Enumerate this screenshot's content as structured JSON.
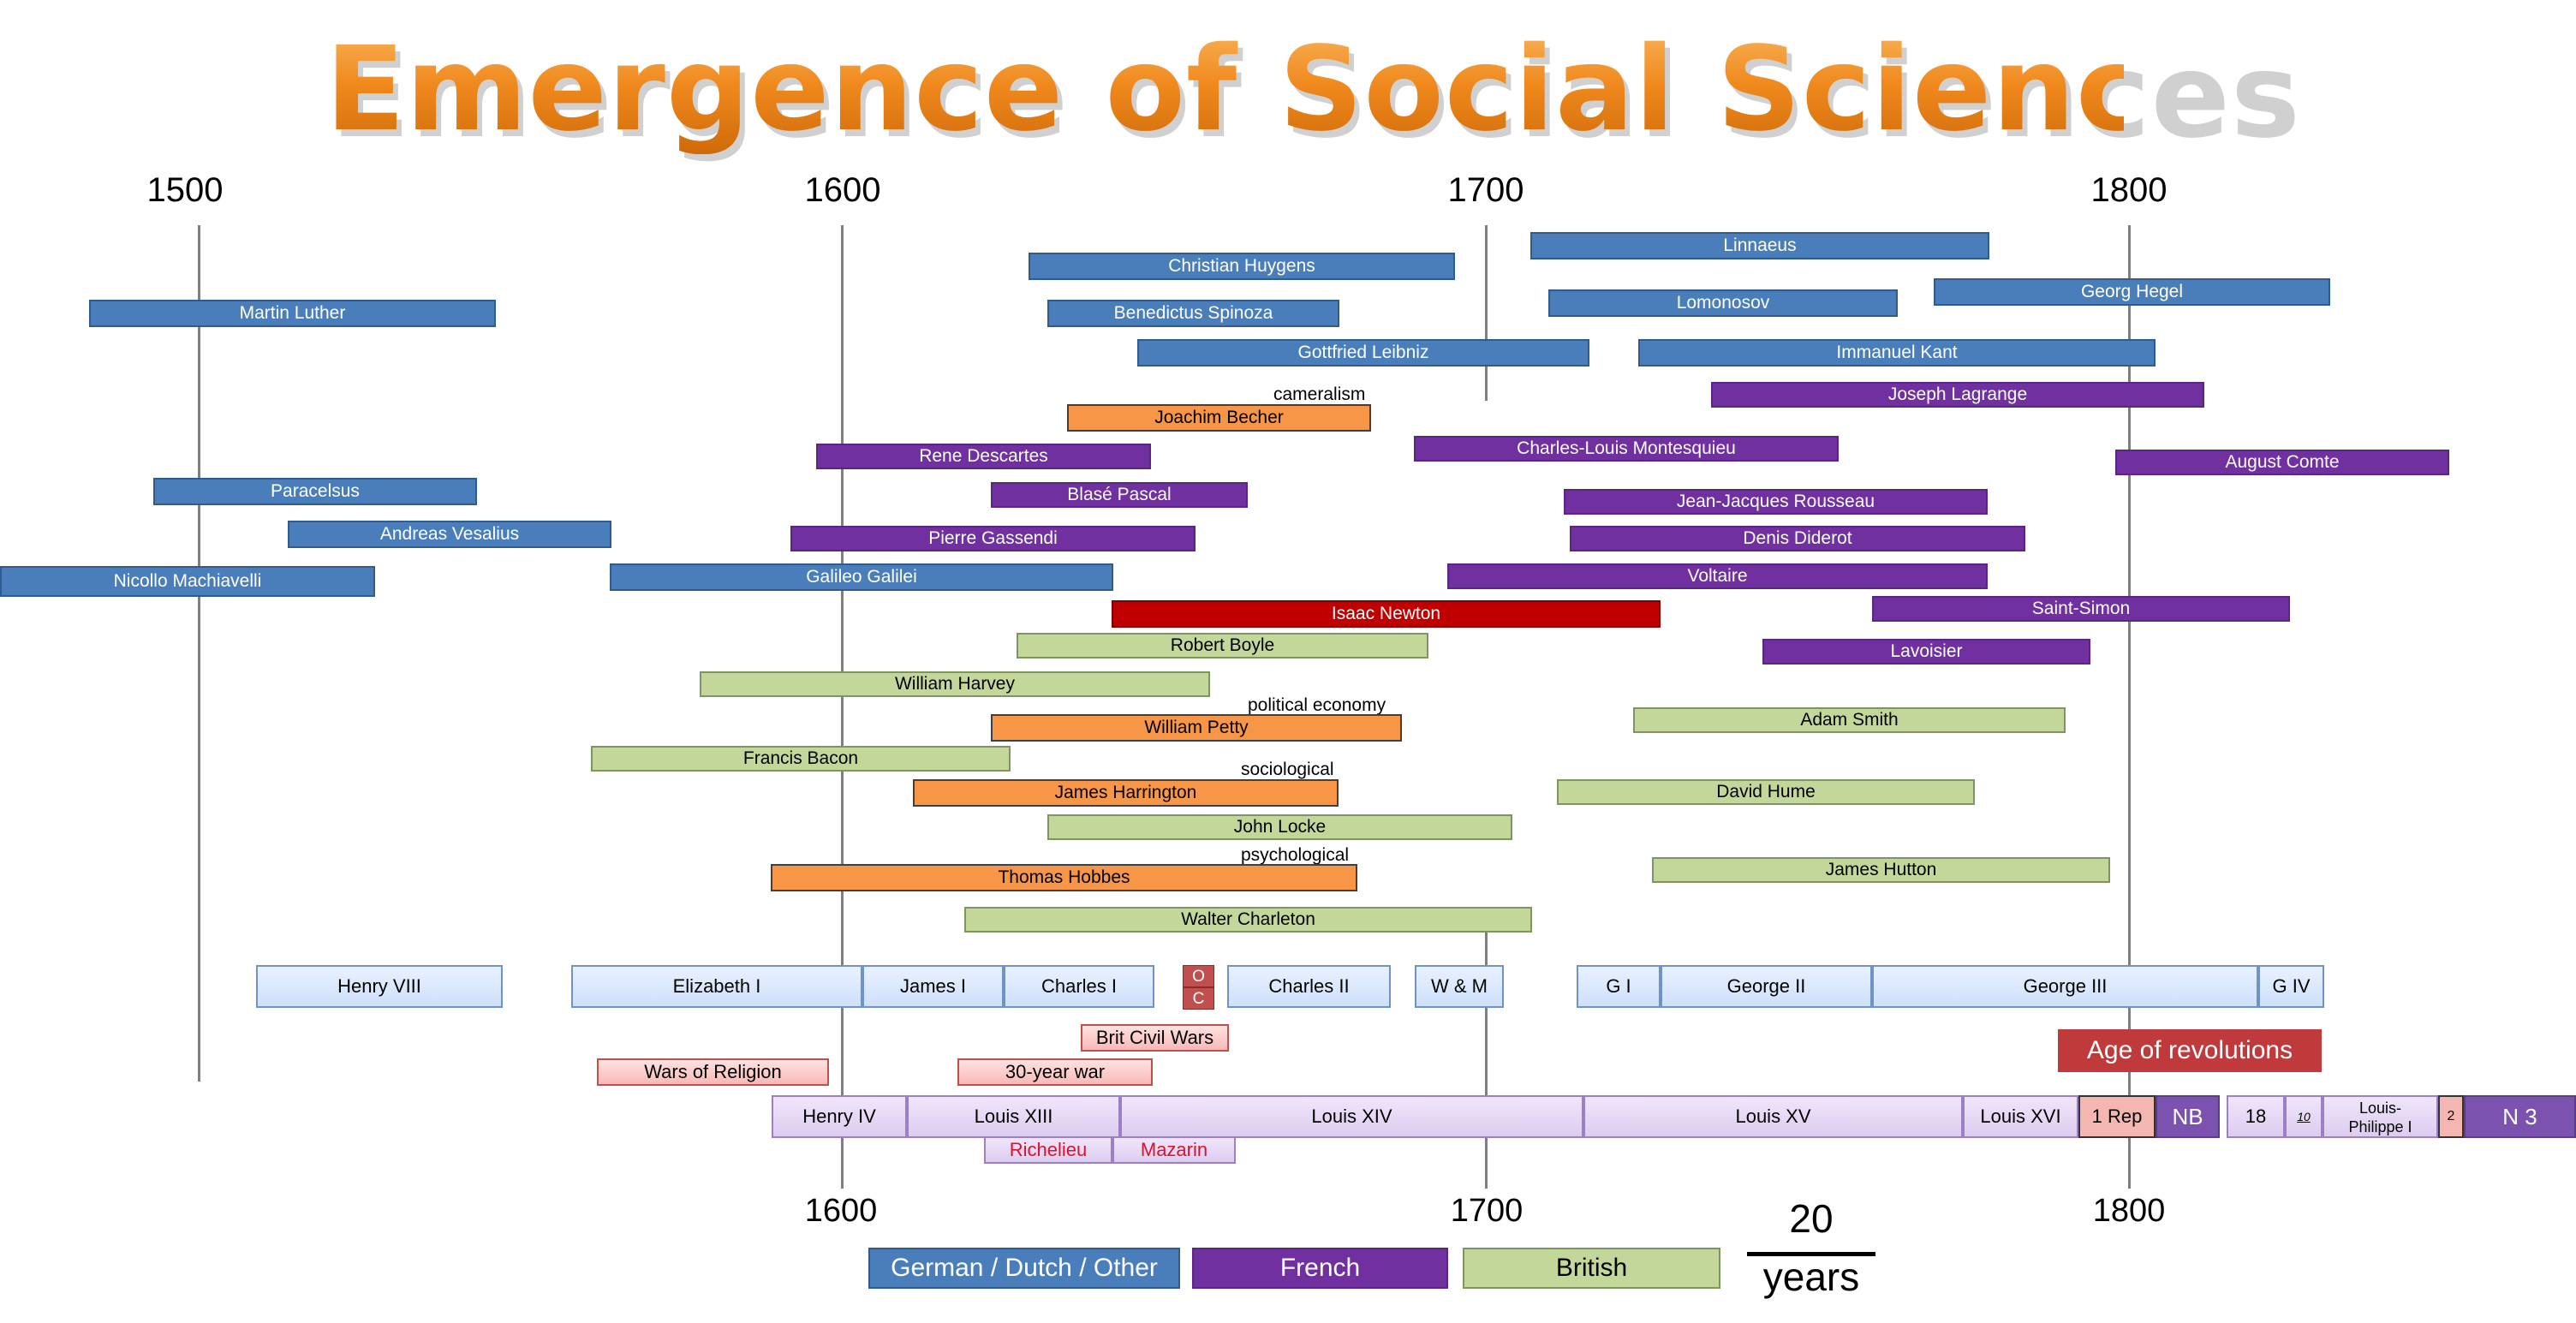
{
  "title": "Emergence of Social Sciences",
  "axis": {
    "top_labels": [
      "1500",
      "1600",
      "1700",
      "1800"
    ],
    "bottom_labels": [
      "1600",
      "1700",
      "1800"
    ]
  },
  "thinkers": {
    "german_dutch_other": [
      "Christian Huygens",
      "Linnaeus",
      "Martin Luther",
      "Benedictus Spinoza",
      "Lomonosov",
      "Georg Hegel",
      "Gottfried Leibniz",
      "Immanuel Kant",
      "Paracelsus",
      "Andreas Vesalius",
      "Nicollo Machiavelli",
      "Galileo Galilei"
    ],
    "french": [
      "Joseph Lagrange",
      "Rene Descartes",
      "Charles-Louis Montesquieu",
      "August Comte",
      "Blasé Pascal",
      "Jean-Jacques Rousseau",
      "Pierre Gassendi",
      "Denis Diderot",
      "Voltaire",
      "Saint-Simon",
      "Lavoisier"
    ],
    "british": [
      "Robert Boyle",
      "William Harvey",
      "Adam Smith",
      "Francis Bacon",
      "David Hume",
      "John Locke",
      "James Hutton",
      "Walter Charleton"
    ],
    "social_science_founders": [
      "Joachim Becher",
      "William Petty",
      "James Harrington",
      "Thomas Hobbes"
    ],
    "highlight": [
      "Isaac Newton"
    ]
  },
  "annotations": [
    "cameralism",
    "political economy",
    "sociological",
    "psychological"
  ],
  "english_monarchs": [
    "Henry VIII",
    "Elizabeth I",
    "James I",
    "Charles I",
    "O",
    "C",
    "Charles II",
    "W & M",
    "G I",
    "George II",
    "George III",
    "G IV"
  ],
  "wars": [
    "Brit Civil Wars",
    "Wars of Religion",
    "30-year war"
  ],
  "age_of_revolutions": "Age of revolutions",
  "french_rulers": [
    "Henry IV",
    "Louis XIII",
    "Louis XIV",
    "Louis XV",
    "Louis XVI",
    "1 Rep",
    "NB",
    "18",
    "10",
    "Louis-",
    "Philippe I",
    "2",
    "N 3"
  ],
  "ministers": [
    "Richelieu",
    "Mazarin"
  ],
  "legend": {
    "german": "German / Dutch / Other",
    "french": "French",
    "british": "British",
    "scale_value": "20",
    "scale_unit": "years"
  },
  "colors": {
    "german": "#4a7ebb",
    "french": "#7030a0",
    "british": "#c4d79b",
    "founders": "#f79646",
    "newton": "#c00000",
    "title": "#f08a1e"
  }
}
